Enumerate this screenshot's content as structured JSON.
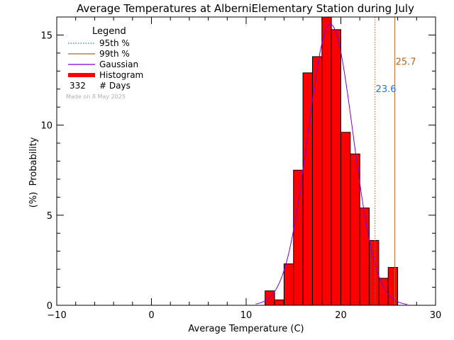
{
  "chart_data": {
    "type": "bar",
    "title": "Average Temperatures at AlberniElementary Station during July",
    "xlabel": "Average Temperature (C)",
    "ylabel_top": "Probability",
    "ylabel_bottom": "(%)",
    "xlim": [
      -10,
      30
    ],
    "ylim": [
      0,
      16
    ],
    "xticks": [
      -10,
      0,
      10,
      20,
      30
    ],
    "yticks": [
      0,
      5,
      10,
      15
    ],
    "x_minor_step": 2,
    "y_minor_step": 1,
    "grid": false,
    "legend": {
      "title": "Legend",
      "entries": [
        "95th %",
        "99th %",
        "Gaussian",
        "Histogram"
      ],
      "count_value": "332",
      "count_label": "# Days",
      "made_on": "Made on 8 May 2025"
    },
    "histogram": {
      "bin_width": 1,
      "bin_start": [
        12,
        13,
        14,
        15,
        16,
        17,
        18,
        19,
        20,
        21,
        22,
        23,
        24,
        25
      ],
      "values": [
        0.8,
        0.3,
        2.3,
        7.5,
        12.9,
        13.8,
        16.0,
        15.3,
        9.6,
        8.4,
        5.4,
        3.6,
        1.5,
        2.1
      ]
    },
    "gaussian": {
      "mean": 18.9,
      "sd": 2.4,
      "peak": 15.6,
      "x_range": [
        11,
        27
      ]
    },
    "percentiles": [
      {
        "name": "95th %",
        "value": 23.6,
        "label": "23.6"
      },
      {
        "name": "99th %",
        "value": 25.7,
        "label": "25.7"
      }
    ],
    "colors": {
      "histogram": "#ff0000",
      "gaussian": "#7a00cc",
      "p95": "#1f77d0",
      "p99": "#b5651d",
      "made_on": "#b0b0b0",
      "axis": "#000000"
    }
  }
}
